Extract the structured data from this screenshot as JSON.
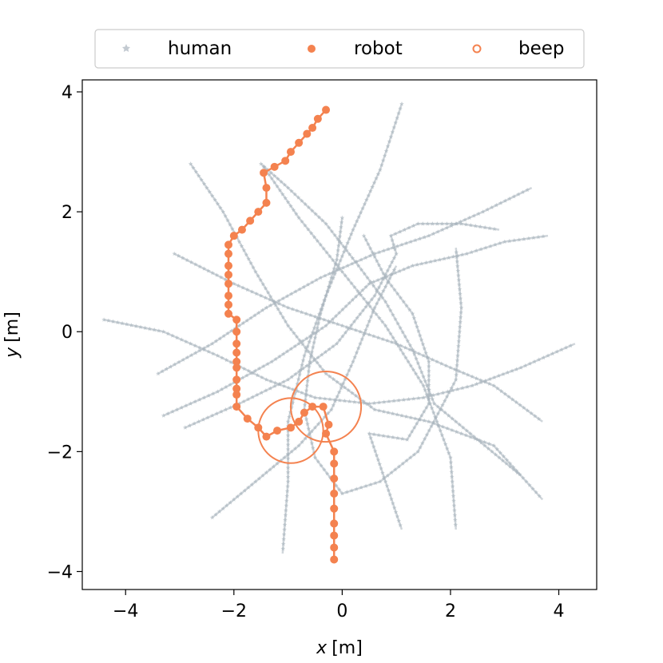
{
  "chart_data": {
    "type": "scatter",
    "title": "",
    "xlabel_var": "x",
    "xlabel_unit": "[m]",
    "ylabel_var": "y",
    "ylabel_unit": "[m]",
    "xlim": [
      -4.8,
      4.7
    ],
    "ylim": [
      -4.3,
      4.2
    ],
    "xticks": [
      -4,
      -2,
      0,
      2,
      4
    ],
    "yticks": [
      -4,
      -2,
      0,
      2,
      4
    ],
    "xtick_labels": [
      "−4",
      "−2",
      "0",
      "2",
      "4"
    ],
    "ytick_labels": [
      "−4",
      "−2",
      "0",
      "2",
      "4"
    ],
    "grid": false,
    "legend": {
      "placement": "top-center, above plot",
      "entries": [
        {
          "label": "human",
          "marker": "star",
          "color": "#a9b4bd"
        },
        {
          "label": "robot",
          "marker": "filled-circle",
          "color": "#f4824f"
        },
        {
          "label": "beep",
          "marker": "open-circle",
          "color": "#f4824f"
        }
      ]
    },
    "colors": {
      "human": "#a9b4bd",
      "robot": "#f4824f",
      "beep": "#f4824f"
    },
    "humans": [
      [
        [
          1.1,
          3.8
        ],
        [
          0.7,
          2.7
        ],
        [
          0.2,
          1.7
        ],
        [
          -0.3,
          0.6
        ],
        [
          -0.7,
          -0.4
        ],
        [
          -1.0,
          -1.5
        ],
        [
          -1.0,
          -2.5
        ],
        [
          -1.1,
          -3.7
        ]
      ],
      [
        [
          -2.8,
          2.8
        ],
        [
          -2.2,
          2.0
        ],
        [
          -1.6,
          1.0
        ],
        [
          -1.0,
          0.1
        ],
        [
          -0.3,
          -0.7
        ],
        [
          0.6,
          -1.3
        ],
        [
          1.6,
          -1.5
        ],
        [
          2.8,
          -1.9
        ],
        [
          3.7,
          -2.8
        ]
      ],
      [
        [
          -1.45,
          2.75
        ],
        [
          -0.8,
          1.9
        ],
        [
          0.0,
          1.0
        ],
        [
          0.8,
          0.1
        ],
        [
          1.5,
          -0.9
        ],
        [
          2.0,
          -2.1
        ],
        [
          2.1,
          -3.3
        ]
      ],
      [
        [
          -1.5,
          2.8
        ],
        [
          -1.0,
          2.4
        ],
        [
          -0.3,
          1.8
        ],
        [
          0.3,
          1.1
        ],
        [
          0.8,
          0.5
        ],
        [
          1.3,
          -0.3
        ],
        [
          1.7,
          -1.2
        ],
        [
          2.5,
          -1.8
        ],
        [
          3.3,
          -2.4
        ]
      ],
      [
        [
          -3.4,
          -0.7
        ],
        [
          -2.4,
          -0.2
        ],
        [
          -1.4,
          0.4
        ],
        [
          -0.4,
          0.9
        ],
        [
          0.6,
          1.3
        ],
        [
          1.6,
          1.6
        ],
        [
          2.6,
          2.0
        ],
        [
          3.5,
          2.4
        ]
      ],
      [
        [
          -4.4,
          0.2
        ],
        [
          -3.3,
          0.0
        ],
        [
          -2.3,
          -0.4
        ],
        [
          -1.4,
          -0.8
        ],
        [
          -0.5,
          -1.1
        ],
        [
          0.5,
          -1.2
        ],
        [
          1.5,
          -1.1
        ],
        [
          2.4,
          -0.9
        ],
        [
          3.3,
          -0.6
        ],
        [
          4.3,
          -0.2
        ]
      ],
      [
        [
          -3.1,
          1.3
        ],
        [
          -2.0,
          0.8
        ],
        [
          -1.0,
          0.4
        ],
        [
          0.0,
          0.1
        ],
        [
          1.0,
          -0.2
        ],
        [
          2.0,
          -0.6
        ],
        [
          2.8,
          -0.9
        ],
        [
          3.7,
          -1.5
        ]
      ],
      [
        [
          -3.3,
          -1.4
        ],
        [
          -2.3,
          -1.0
        ],
        [
          -1.3,
          -0.5
        ],
        [
          -0.3,
          0.1
        ],
        [
          0.5,
          0.8
        ],
        [
          1.3,
          1.1
        ],
        [
          2.3,
          1.3
        ],
        [
          3.0,
          1.5
        ],
        [
          3.8,
          1.6
        ]
      ],
      [
        [
          -2.9,
          -1.6
        ],
        [
          -1.9,
          -1.2
        ],
        [
          -1.0,
          -0.8
        ],
        [
          -0.1,
          -0.2
        ],
        [
          0.6,
          0.6
        ],
        [
          1.0,
          1.3
        ],
        [
          0.9,
          1.6
        ],
        [
          1.4,
          1.8
        ],
        [
          2.2,
          1.8
        ],
        [
          2.9,
          1.7
        ]
      ],
      [
        [
          0.0,
          1.9
        ],
        [
          -0.1,
          1.2
        ],
        [
          -0.4,
          0.3
        ],
        [
          -0.6,
          -0.5
        ],
        [
          -0.7,
          -1.3
        ],
        [
          -0.5,
          -2.1
        ],
        [
          0.0,
          -2.7
        ],
        [
          0.7,
          -2.5
        ],
        [
          1.4,
          -2.0
        ],
        [
          2.1,
          -0.8
        ],
        [
          2.2,
          0.4
        ],
        [
          2.1,
          1.4
        ]
      ],
      [
        [
          0.4,
          1.6
        ],
        [
          0.8,
          0.9
        ],
        [
          1.3,
          0.3
        ],
        [
          1.6,
          -0.5
        ],
        [
          1.6,
          -1.2
        ],
        [
          1.2,
          -1.8
        ],
        [
          0.5,
          -1.7
        ],
        [
          0.8,
          -2.5
        ],
        [
          1.1,
          -3.3
        ]
      ],
      [
        [
          -2.4,
          -3.1
        ],
        [
          -1.6,
          -2.5
        ],
        [
          -0.8,
          -1.9
        ],
        [
          -0.2,
          -1.3
        ],
        [
          0.2,
          -0.5
        ],
        [
          0.6,
          0.4
        ],
        [
          1.0,
          1.1
        ]
      ]
    ],
    "robot": {
      "x": [
        -0.3,
        -0.45,
        -0.55,
        -0.65,
        -0.8,
        -0.95,
        -1.05,
        -1.25,
        -1.45,
        -1.4,
        -1.4,
        -1.55,
        -1.7,
        -1.85,
        -2.0,
        -2.1,
        -2.1,
        -2.1,
        -2.1,
        -2.1,
        -2.1,
        -2.1,
        -2.1,
        -1.95,
        -1.95,
        -1.95,
        -1.95,
        -1.95,
        -1.95,
        -1.95,
        -1.95,
        -1.95,
        -1.95,
        -1.75,
        -1.55,
        -1.4,
        -1.2,
        -0.95,
        -0.8,
        -0.7,
        -0.55,
        -0.35,
        -0.25,
        -0.3,
        -0.15,
        -0.15,
        -0.15,
        -0.15,
        -0.15,
        -0.15,
        -0.15,
        -0.15,
        -0.15
      ],
      "y": [
        3.7,
        3.55,
        3.4,
        3.3,
        3.15,
        3.0,
        2.85,
        2.75,
        2.65,
        2.4,
        2.15,
        2.0,
        1.85,
        1.7,
        1.6,
        1.45,
        1.3,
        1.1,
        0.95,
        0.8,
        0.6,
        0.45,
        0.3,
        0.2,
        0.0,
        -0.2,
        -0.35,
        -0.5,
        -0.6,
        -0.8,
        -0.95,
        -1.05,
        -1.25,
        -1.45,
        -1.6,
        -1.75,
        -1.65,
        -1.6,
        -1.5,
        -1.35,
        -1.25,
        -1.25,
        -1.55,
        -1.7,
        -2.0,
        -2.2,
        -2.45,
        -2.7,
        -2.95,
        -3.2,
        -3.4,
        -3.6,
        -3.8
      ]
    },
    "beeps": [
      {
        "x": -0.3,
        "y": -1.25,
        "radius": 0.65
      },
      {
        "x": -0.95,
        "y": -1.65,
        "radius": 0.6
      }
    ]
  }
}
